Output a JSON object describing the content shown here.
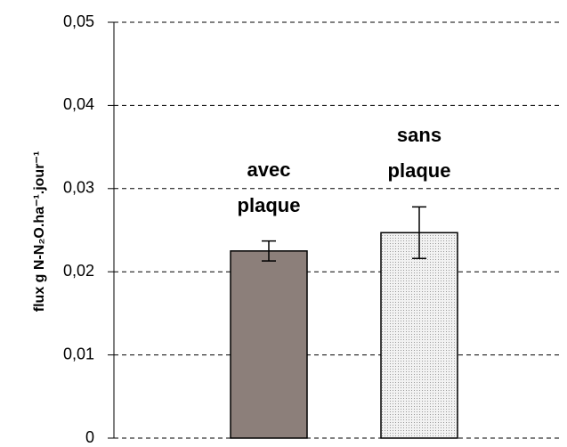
{
  "chart_data": {
    "type": "bar",
    "y_label": "flux g N-N₂O.ha⁻¹.jour⁻¹",
    "categories": [
      "avec plaque",
      "sans plaque"
    ],
    "values": [
      0.0225,
      0.0247
    ],
    "errors": [
      0.0012,
      0.0031
    ],
    "colors": [
      "#8c7f7a",
      "#f2f2f2"
    ],
    "patterns": [
      null,
      "dots"
    ],
    "ylim": [
      0,
      0.05
    ],
    "yticks": [
      0,
      {
        "value": 0.01,
        "label": "0,01"
      },
      {
        "value": 0.02,
        "label": "0,02"
      },
      {
        "value": 0.03,
        "label": "0,03"
      },
      {
        "value": 0.04,
        "label": "0,04"
      },
      {
        "value": 0.05,
        "label": "0,05"
      }
    ],
    "grid": true
  }
}
